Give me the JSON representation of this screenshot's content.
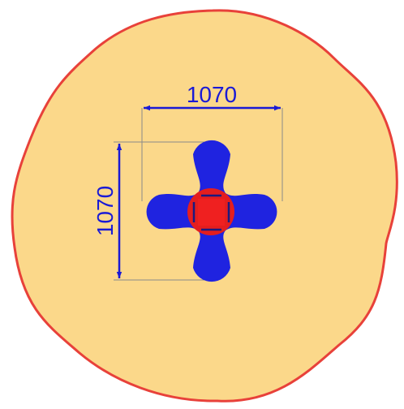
{
  "diagram": {
    "width_dimension": "1070",
    "height_dimension": "1070"
  },
  "colors": {
    "background": "#ffffff",
    "safety_zone_fill": "#fbd88a",
    "safety_zone_stroke": "#e8413a",
    "equipment_arms": "#1f23e0",
    "center_ring": "#e41e1e",
    "center_square": "#ef2020",
    "dimension_ink": "#1a1ad6",
    "extension_lines": "#8a8a8a"
  }
}
